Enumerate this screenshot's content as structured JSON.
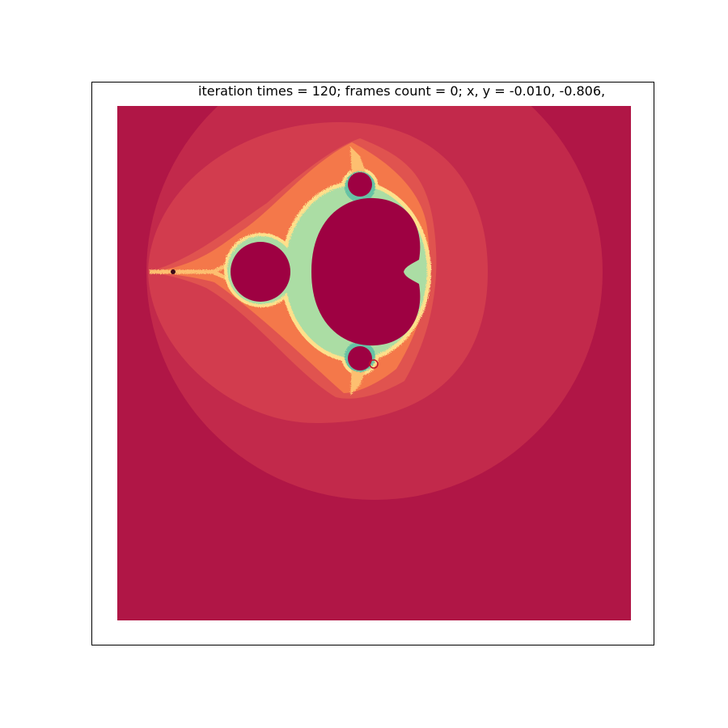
{
  "figure": {
    "title": "iteration times = 120; frames count = 0; x, y = -0.010, -0.806,"
  },
  "fractal": {
    "type": "mandelbrot",
    "iteration_times": 120,
    "frames_count": 0,
    "cursor": {
      "x": -0.01,
      "y": -0.806
    },
    "colormap": "Spectral",
    "background_color": "#b01646",
    "set_color": "#9e0142"
  }
}
